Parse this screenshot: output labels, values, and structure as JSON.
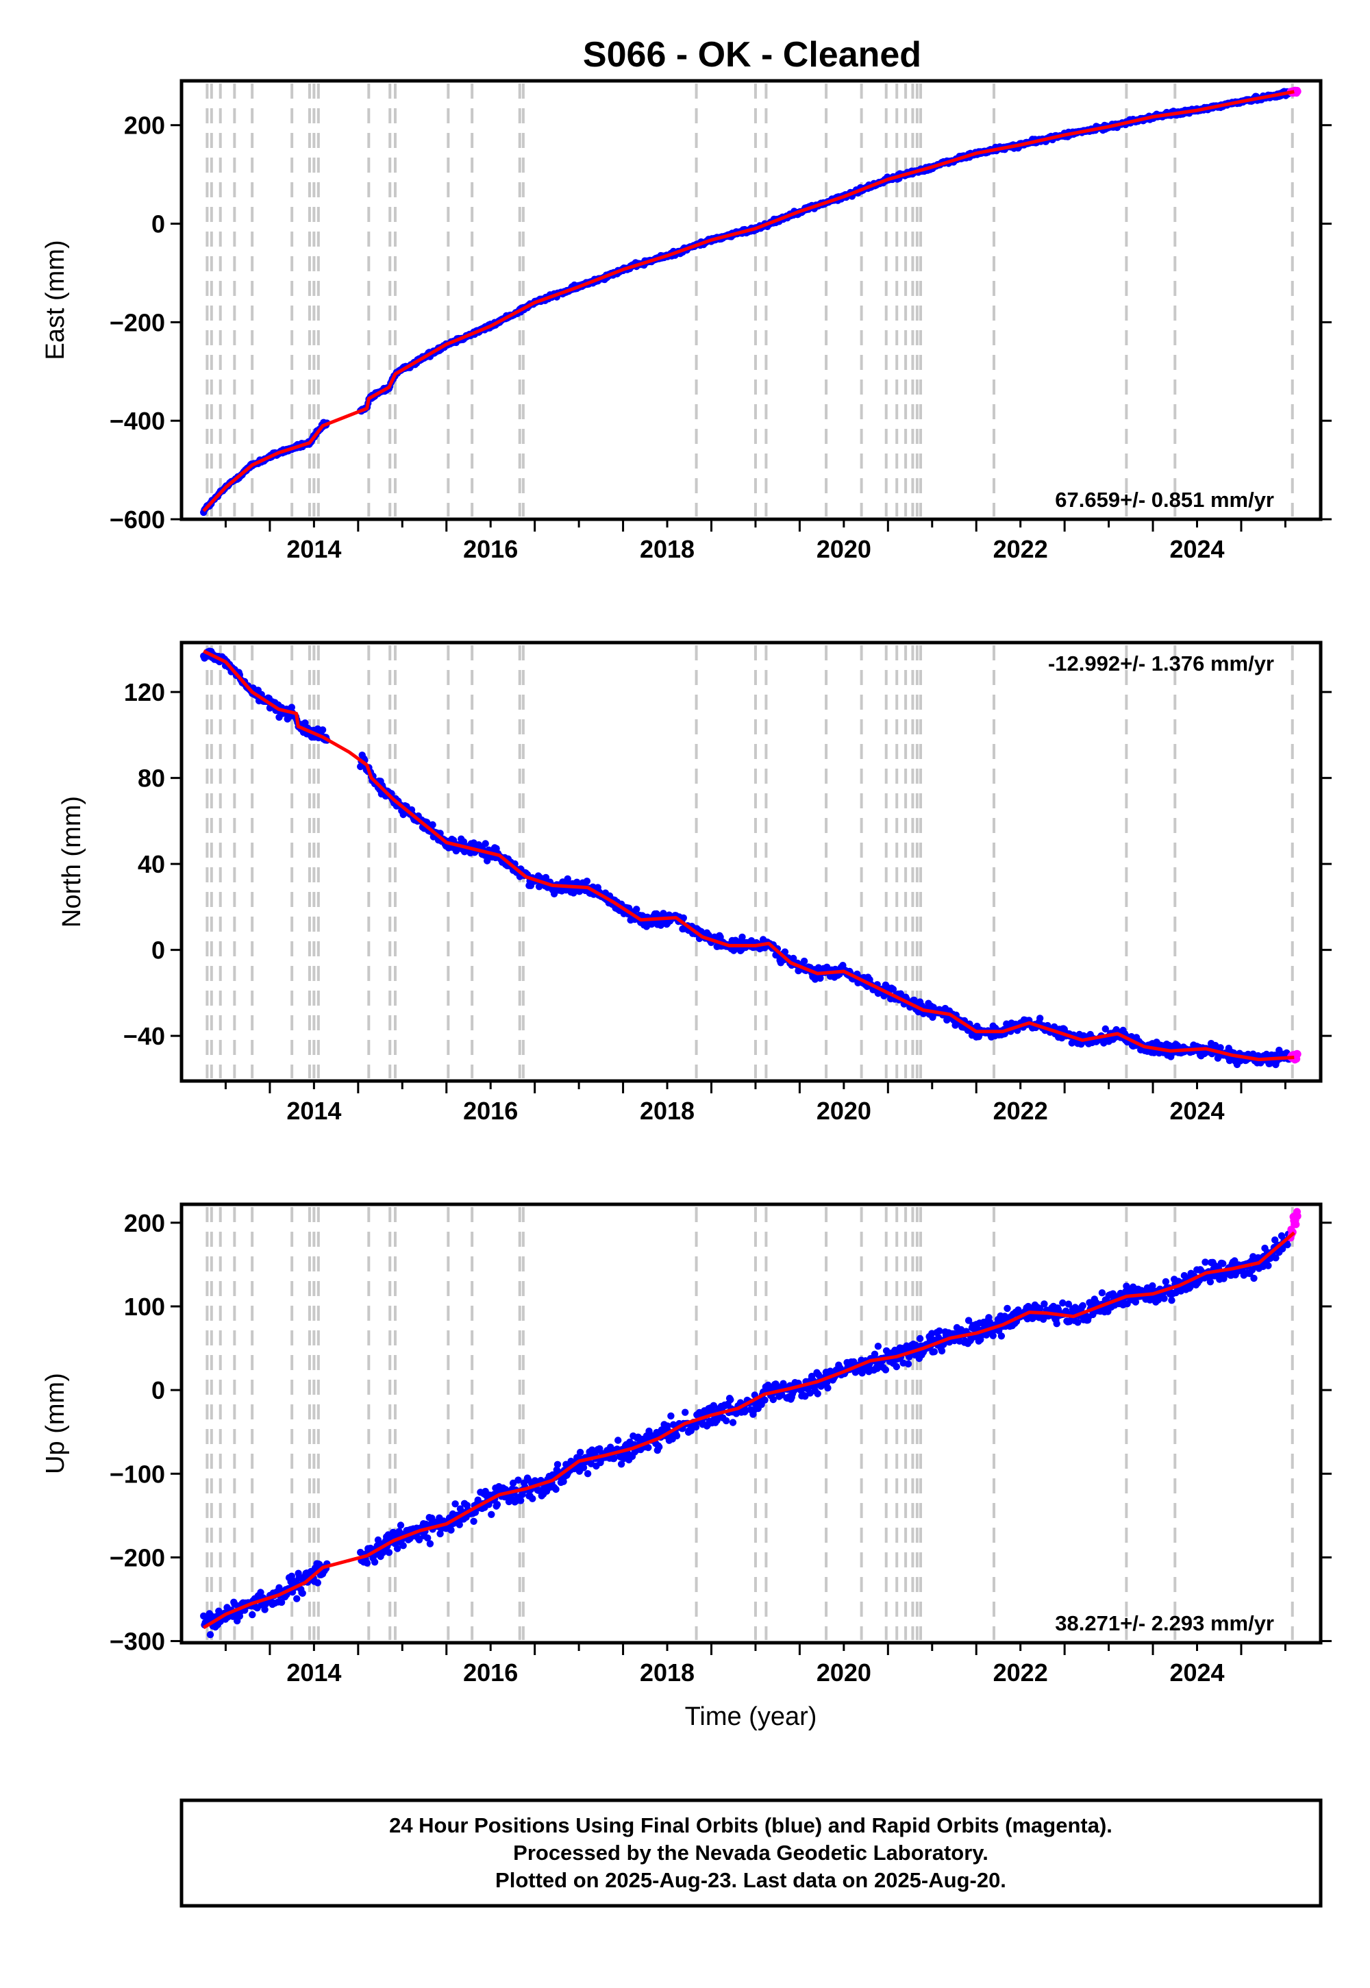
{
  "title": "S066  - OK - Cleaned",
  "footer": {
    "lines": [
      "24 Hour Positions Using Final Orbits (blue) and Rapid Orbits (magenta).",
      "Processed by the Nevada Geodetic Laboratory.",
      "Plotted on 2025-Aug-23. Last data on 2025-Aug-20."
    ]
  },
  "colors": {
    "final_orbits": "#0000ff",
    "rapid_orbits": "#ff00ff",
    "model": "#ff0000",
    "event_lines": "#c8c8c8"
  },
  "chart_data": [
    {
      "type": "scatter",
      "component": "east",
      "ylabel": "East (mm)",
      "xlabel": "",
      "xlim": [
        2013.0,
        2025.9
      ],
      "ylim": [
        -600,
        290
      ],
      "yticks": [
        200,
        0,
        -200,
        -400,
        -600
      ],
      "xticks": [
        2014,
        2016,
        2018,
        2020,
        2022,
        2024
      ],
      "rate_label": "67.659+/- 0.851 mm/yr",
      "rate_position": "bottom-right",
      "grid": false,
      "model": {
        "x": [
          2013.25,
          2013.5,
          2013.8,
          2014.1,
          2014.45,
          2014.6,
          2015.1,
          2015.12,
          2015.35,
          2015.42,
          2016.0,
          2016.5,
          2017.0,
          2017.5,
          2018.0,
          2018.5,
          2019.0,
          2019.5,
          2020.0,
          2020.5,
          2021.0,
          2021.5,
          2022.0,
          2022.5,
          2023.0,
          2023.5,
          2024.0,
          2024.5,
          2025.0,
          2025.6
        ],
        "y": [
          -583,
          -535,
          -490,
          -465,
          -445,
          -410,
          -375,
          -355,
          -332,
          -305,
          -245,
          -208,
          -160,
          -128,
          -93,
          -65,
          -33,
          -10,
          25,
          55,
          90,
          115,
          143,
          160,
          180,
          197,
          217,
          230,
          248,
          268
        ]
      }
    },
    {
      "type": "scatter",
      "component": "north",
      "ylabel": "North (mm)",
      "xlabel": "",
      "xlim": [
        2013.0,
        2025.9
      ],
      "ylim": [
        -61,
        143
      ],
      "yticks": [
        120,
        80,
        40,
        0,
        -40
      ],
      "xticks": [
        2014,
        2016,
        2018,
        2020,
        2022,
        2024
      ],
      "rate_label": "-12.992+/- 1.376 mm/yr",
      "rate_position": "top-right",
      "grid": false,
      "model": {
        "x": [
          2013.25,
          2013.5,
          2013.8,
          2014.1,
          2014.3,
          2014.32,
          2014.6,
          2014.9,
          2015.1,
          2015.15,
          2015.4,
          2015.7,
          2016.0,
          2016.3,
          2016.6,
          2016.9,
          2017.2,
          2017.6,
          2017.9,
          2018.2,
          2018.6,
          2018.9,
          2019.2,
          2019.5,
          2019.65,
          2019.9,
          2020.2,
          2020.5,
          2020.8,
          2021.1,
          2021.4,
          2021.7,
          2022.0,
          2022.3,
          2022.6,
          2022.9,
          2023.2,
          2023.6,
          2023.9,
          2024.2,
          2024.6,
          2024.9,
          2025.2,
          2025.6
        ],
        "y": [
          139,
          134,
          120,
          112,
          110,
          104,
          99,
          92,
          86,
          80,
          70,
          60,
          50,
          47,
          44,
          34,
          30,
          29,
          22,
          14,
          15,
          6,
          2,
          2,
          3,
          -6,
          -11,
          -10,
          -16,
          -22,
          -28,
          -30,
          -38,
          -38,
          -34,
          -38,
          -42,
          -39,
          -45,
          -47,
          -46,
          -49,
          -51,
          -50
        ]
      }
    },
    {
      "type": "scatter",
      "component": "up",
      "ylabel": "Up (mm)",
      "xlabel": "Time (year)",
      "xlim": [
        2013.0,
        2025.9
      ],
      "ylim": [
        -302,
        222
      ],
      "yticks": [
        200,
        100,
        0,
        -100,
        -200,
        -300
      ],
      "xticks": [
        2014,
        2016,
        2018,
        2020,
        2022,
        2024
      ],
      "rate_label": "38.271+/- 2.293 mm/yr",
      "rate_position": "bottom-right",
      "grid": false,
      "model": {
        "x": [
          2013.25,
          2013.5,
          2013.8,
          2014.1,
          2014.4,
          2014.6,
          2015.1,
          2015.4,
          2015.7,
          2016.0,
          2016.3,
          2016.6,
          2016.9,
          2017.2,
          2017.5,
          2017.8,
          2018.1,
          2018.4,
          2018.7,
          2019.0,
          2019.3,
          2019.6,
          2019.9,
          2020.2,
          2020.5,
          2020.8,
          2021.1,
          2021.4,
          2021.7,
          2022.0,
          2022.3,
          2022.6,
          2022.8,
          2023.1,
          2023.4,
          2023.7,
          2024.0,
          2024.3,
          2024.6,
          2024.9,
          2025.2,
          2025.6
        ],
        "y": [
          -284,
          -268,
          -255,
          -245,
          -230,
          -212,
          -198,
          -180,
          -168,
          -160,
          -142,
          -125,
          -118,
          -108,
          -85,
          -78,
          -70,
          -58,
          -40,
          -30,
          -22,
          -5,
          2,
          10,
          22,
          35,
          40,
          50,
          62,
          68,
          78,
          93,
          92,
          88,
          100,
          112,
          115,
          125,
          140,
          145,
          152,
          188
        ]
      }
    }
  ],
  "event_lines": [
    2013.29,
    2013.34,
    2013.44,
    2013.6,
    2013.8,
    2014.25,
    2014.45,
    2014.5,
    2014.55,
    2015.12,
    2015.36,
    2015.42,
    2016.02,
    2016.29,
    2016.83,
    2016.87,
    2018.83,
    2019.5,
    2019.62,
    2020.3,
    2020.7,
    2020.98,
    2021.1,
    2021.2,
    2021.28,
    2021.33,
    2021.37,
    2022.2,
    2023.7,
    2024.25,
    2025.58
  ]
}
